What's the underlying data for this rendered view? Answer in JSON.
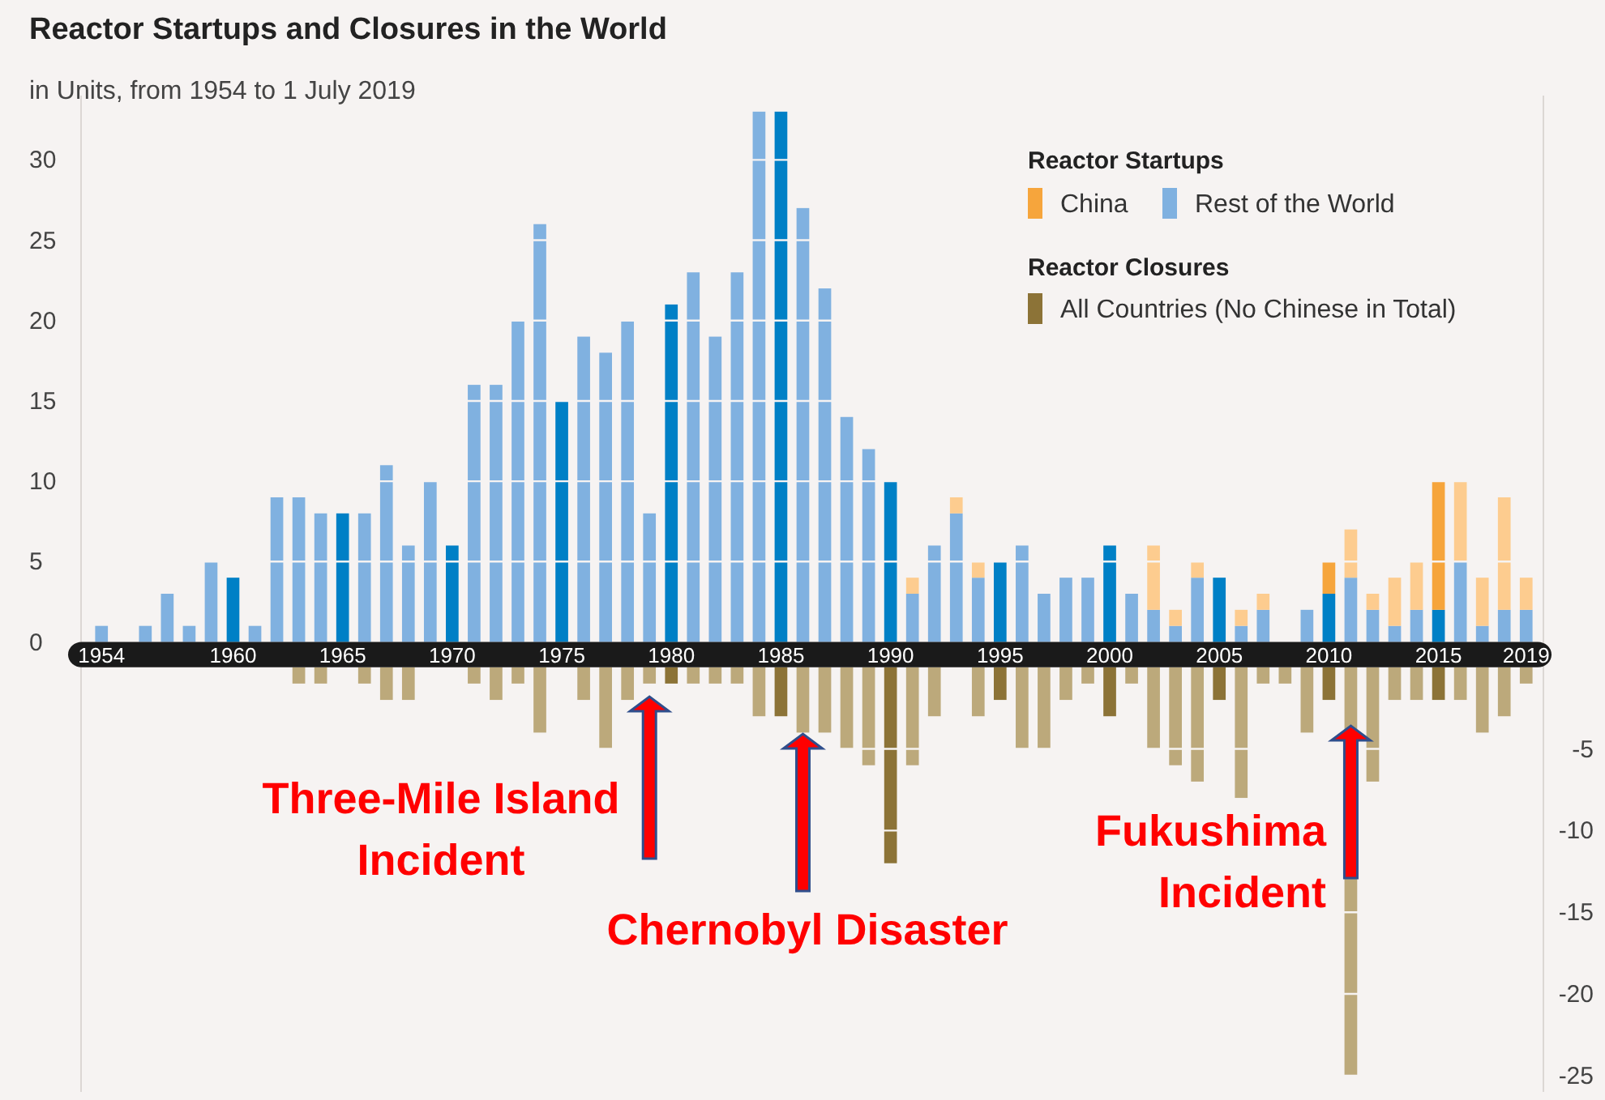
{
  "chart_data": {
    "type": "bar",
    "title": "Reactor Startups and Closures in the World",
    "subtitle": "in Units, from 1954 to 1 July 2019",
    "categories": [
      "1954",
      null,
      null,
      null,
      null,
      null,
      "1960",
      null,
      null,
      null,
      null,
      "1965",
      null,
      null,
      null,
      null,
      "1970",
      null,
      null,
      null,
      null,
      "1975",
      null,
      null,
      null,
      null,
      "1980",
      null,
      null,
      null,
      null,
      "1985",
      null,
      null,
      null,
      null,
      "1990",
      null,
      null,
      null,
      null,
      "1995",
      null,
      null,
      null,
      null,
      "2000",
      null,
      null,
      null,
      null,
      "2005",
      null,
      null,
      null,
      null,
      "2010",
      null,
      null,
      null,
      null,
      "2015",
      null,
      null,
      null,
      "2019"
    ],
    "stacked": true,
    "legend": "top right",
    "grid": "y",
    "legend_title": "Reactor Startups",
    "ylim": [
      -28,
      34
    ],
    "yticks": [
      0,
      5,
      10,
      15,
      20,
      25,
      30
    ],
    "y2lim": [
      -26,
      35
    ],
    "y2ticks": [
      {
        "value": -5,
        "label": "-5"
      },
      {
        "value": -10,
        "label": "-10"
      },
      {
        "value": -15,
        "label": "-15"
      },
      {
        "value": -20,
        "label": "-20"
      },
      {
        "value": -25,
        "label": "-25"
      }
    ],
    "series": [
      {
        "name": "Rest of the World",
        "color": "#80b1e0",
        "values": [
          1,
          0,
          1,
          3,
          1,
          5,
          4,
          1,
          9,
          9,
          8,
          8,
          8,
          11,
          6,
          10,
          6,
          16,
          16,
          20,
          26,
          15,
          19,
          18,
          20,
          8,
          21,
          23,
          19,
          23,
          33,
          33,
          27,
          22,
          14,
          12,
          10,
          3,
          6,
          8,
          4,
          5,
          6,
          3,
          4,
          4,
          6,
          3,
          2,
          1,
          4,
          4,
          1,
          2,
          0,
          2,
          3,
          4,
          2,
          1,
          2,
          2,
          5,
          1,
          2,
          2
        ],
        "colors": [
          "#80b1e0",
          "#80b1e0",
          "#80b1e0",
          "#80b1e0",
          "#80b1e0",
          "#80b1e0",
          "#0080c6",
          "#80b1e0",
          "#80b1e0",
          "#80b1e0",
          "#80b1e0",
          "#0080c6",
          "#80b1e0",
          "#80b1e0",
          "#80b1e0",
          "#80b1e0",
          "#0080c6",
          "#80b1e0",
          "#80b1e0",
          "#80b1e0",
          "#80b1e0",
          "#0080c6",
          "#80b1e0",
          "#80b1e0",
          "#80b1e0",
          "#80b1e0",
          "#0080c6",
          "#80b1e0",
          "#80b1e0",
          "#80b1e0",
          "#80b1e0",
          "#0080c6",
          "#80b1e0",
          "#80b1e0",
          "#80b1e0",
          "#80b1e0",
          "#0080c6",
          "#80b1e0",
          "#80b1e0",
          "#80b1e0",
          "#80b1e0",
          "#0080c6",
          "#80b1e0",
          "#80b1e0",
          "#80b1e0",
          "#80b1e0",
          "#0080c6",
          "#80b1e0",
          "#80b1e0",
          "#80b1e0",
          "#80b1e0",
          "#0080c6",
          "#80b1e0",
          "#80b1e0",
          "#80b1e0",
          "#80b1e0",
          "#0080c6",
          "#80b1e0",
          "#80b1e0",
          "#80b1e0",
          "#80b1e0",
          "#0080c6",
          "#80b1e0",
          "#80b1e0",
          "#80b1e0",
          "#80b1e0"
        ]
      },
      {
        "name": "China",
        "color": "#f6a53c",
        "values": [
          0,
          0,
          0,
          0,
          0,
          0,
          0,
          0,
          0,
          0,
          0,
          0,
          0,
          0,
          0,
          0,
          0,
          0,
          0,
          0,
          0,
          0,
          0,
          0,
          0,
          0,
          0,
          0,
          0,
          0,
          0,
          0,
          0,
          0,
          0,
          0,
          0,
          1,
          0,
          1,
          1,
          0,
          0,
          0,
          0,
          0,
          0,
          0,
          4,
          1,
          1,
          0,
          1,
          1,
          0,
          0,
          2,
          3,
          1,
          3,
          3,
          8,
          5,
          3,
          7,
          2
        ],
        "colors": [
          "#fdcc8f",
          "#fdcc8f",
          "#fdcc8f",
          "#fdcc8f",
          "#fdcc8f",
          "#fdcc8f",
          "#f6a53c",
          "#fdcc8f",
          "#fdcc8f",
          "#fdcc8f",
          "#fdcc8f",
          "#f6a53c",
          "#fdcc8f",
          "#fdcc8f",
          "#fdcc8f",
          "#fdcc8f",
          "#f6a53c",
          "#fdcc8f",
          "#fdcc8f",
          "#fdcc8f",
          "#fdcc8f",
          "#f6a53c",
          "#fdcc8f",
          "#fdcc8f",
          "#fdcc8f",
          "#fdcc8f",
          "#f6a53c",
          "#fdcc8f",
          "#fdcc8f",
          "#fdcc8f",
          "#fdcc8f",
          "#f6a53c",
          "#fdcc8f",
          "#fdcc8f",
          "#fdcc8f",
          "#fdcc8f",
          "#f6a53c",
          "#fdcc8f",
          "#fdcc8f",
          "#fdcc8f",
          "#fdcc8f",
          "#f6a53c",
          "#fdcc8f",
          "#fdcc8f",
          "#fdcc8f",
          "#fdcc8f",
          "#f6a53c",
          "#fdcc8f",
          "#fdcc8f",
          "#fdcc8f",
          "#fdcc8f",
          "#f6a53c",
          "#fdcc8f",
          "#fdcc8f",
          "#fdcc8f",
          "#fdcc8f",
          "#f6a53c",
          "#fdcc8f",
          "#fdcc8f",
          "#fdcc8f",
          "#fdcc8f",
          "#f6a53c",
          "#fdcc8f",
          "#fdcc8f",
          "#fdcc8f",
          "#fdcc8f"
        ]
      },
      {
        "name": "All Countries (No Chinese in Total)",
        "color": "#8c7337",
        "axis": "y2",
        "values": [
          0,
          0,
          0,
          0,
          0,
          0,
          0,
          0,
          0,
          -1,
          -1,
          0,
          -1,
          -2,
          -2,
          0,
          0,
          -1,
          -2,
          -1,
          -4,
          0,
          -2,
          -5,
          -2,
          -1,
          -1,
          -1,
          -1,
          -1,
          -3,
          -3,
          -4,
          -4,
          -5,
          -6,
          -12,
          -6,
          -3,
          0,
          -3,
          -2,
          -5,
          -5,
          -2,
          -1,
          -3,
          -1,
          -5,
          -6,
          -7,
          -2,
          -8,
          -1,
          -1,
          -4,
          -2,
          -25,
          -7,
          -2,
          -2,
          -2,
          -2,
          -4,
          -3,
          -1
        ],
        "colors": [
          "#bca97b",
          "#bca97b",
          "#bca97b",
          "#bca97b",
          "#bca97b",
          "#bca97b",
          "#8c7337",
          "#bca97b",
          "#bca97b",
          "#bca97b",
          "#bca97b",
          "#8c7337",
          "#bca97b",
          "#bca97b",
          "#bca97b",
          "#bca97b",
          "#8c7337",
          "#bca97b",
          "#bca97b",
          "#bca97b",
          "#bca97b",
          "#8c7337",
          "#bca97b",
          "#bca97b",
          "#bca97b",
          "#bca97b",
          "#8c7337",
          "#bca97b",
          "#bca97b",
          "#bca97b",
          "#bca97b",
          "#8c7337",
          "#bca97b",
          "#bca97b",
          "#bca97b",
          "#bca97b",
          "#8c7337",
          "#bca97b",
          "#bca97b",
          "#bca97b",
          "#bca97b",
          "#8c7337",
          "#bca97b",
          "#bca97b",
          "#bca97b",
          "#bca97b",
          "#8c7337",
          "#bca97b",
          "#bca97b",
          "#bca97b",
          "#bca97b",
          "#8c7337",
          "#bca97b",
          "#bca97b",
          "#bca97b",
          "#bca97b",
          "#8c7337",
          "#bca97b",
          "#bca97b",
          "#bca97b",
          "#bca97b",
          "#8c7337",
          "#bca97b",
          "#bca97b",
          "#bca97b",
          "#bca97b"
        ]
      }
    ],
    "annotations": [
      "Reactor Closures",
      "Three-Mile Island Incident",
      "Chernobyl Disaster",
      "Fukushima Incident"
    ]
  }
}
